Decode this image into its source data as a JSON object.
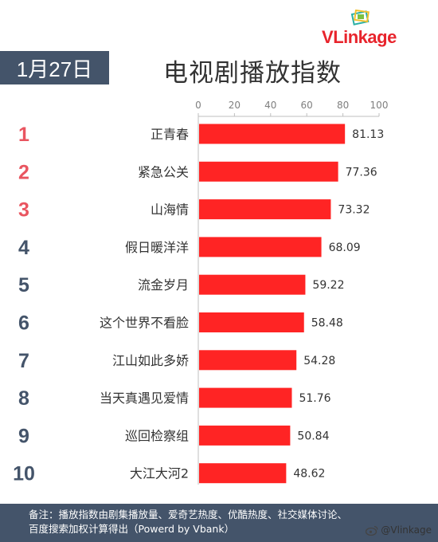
{
  "logo": {
    "text_v": "V",
    "text_rest": "Linkage"
  },
  "date": "1月27日",
  "title": "电视剧播放指数",
  "chart_data": {
    "type": "bar",
    "orientation": "horizontal",
    "ranks": [
      "1",
      "2",
      "3",
      "4",
      "5",
      "6",
      "7",
      "8",
      "9",
      "10"
    ],
    "categories": [
      "正青春",
      "紧急公关",
      "山海情",
      "假日暖洋洋",
      "流金岁月",
      "这个世界不看脸",
      "江山如此多娇",
      "当天真遇见爱情",
      "巡回检察组",
      "大江大河2"
    ],
    "values": [
      81.13,
      77.36,
      73.32,
      68.09,
      59.22,
      58.48,
      54.28,
      51.76,
      50.84,
      48.62
    ],
    "value_labels": [
      "81.13",
      "77.36",
      "73.32",
      "68.09",
      "59.22",
      "58.48",
      "54.28",
      "51.76",
      "50.84",
      "48.62"
    ],
    "xlim": [
      0,
      100
    ],
    "xticks": [
      "0",
      "20",
      "40",
      "60",
      "80",
      "100"
    ],
    "xtick_values": [
      0,
      20,
      40,
      60,
      80,
      100
    ],
    "bar_color": "#ff2424",
    "rank_color_top": "#e95560",
    "rank_color_rest": "#44546a",
    "grid": false
  },
  "footer": {
    "line1": "备注：播放指数由剧集播放量、爱奇艺热度、优酷热度、社交媒体讨论、",
    "line2": "百度搜索加权计算得出（Powerd by Vbank）"
  },
  "watermark": "@Vlinkage"
}
